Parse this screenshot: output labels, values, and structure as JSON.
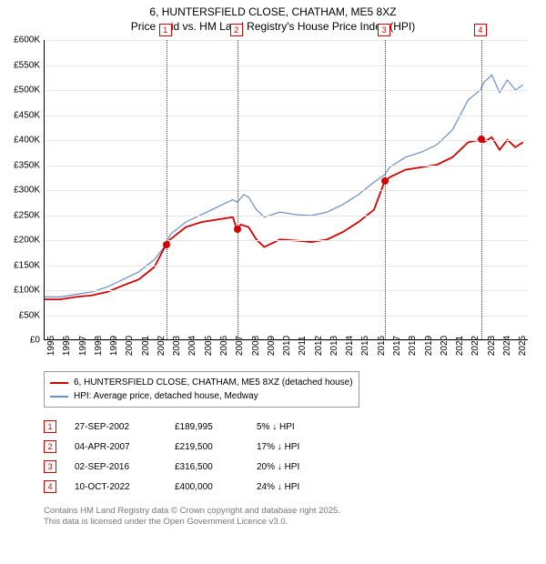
{
  "title_line1": "6, HUNTERSFIELD CLOSE, CHATHAM, ME5 8XZ",
  "title_line2": "Price paid vs. HM Land Registry's House Price Index (HPI)",
  "chart": {
    "type": "line",
    "x_domain": [
      1995,
      2025.8
    ],
    "y_domain": [
      0,
      600000
    ],
    "y_ticks": [
      0,
      50000,
      100000,
      150000,
      200000,
      250000,
      300000,
      350000,
      400000,
      450000,
      500000,
      550000,
      600000
    ],
    "y_tick_labels": [
      "£0",
      "£50K",
      "£100K",
      "£150K",
      "£200K",
      "£250K",
      "£300K",
      "£350K",
      "£400K",
      "£450K",
      "£500K",
      "£550K",
      "£600K"
    ],
    "x_ticks": [
      1995,
      1996,
      1997,
      1998,
      1999,
      2000,
      2001,
      2002,
      2003,
      2004,
      2005,
      2006,
      2007,
      2008,
      2009,
      2010,
      2011,
      2012,
      2013,
      2014,
      2015,
      2016,
      2017,
      2018,
      2019,
      2020,
      2021,
      2022,
      2023,
      2024,
      2025
    ],
    "grid_color": "#e8e8e8",
    "background": "#ffffff",
    "series": [
      {
        "name": "hpi",
        "color": "#6a8fc9",
        "width": 1.2,
        "points": [
          [
            1995,
            85000
          ],
          [
            1996,
            85000
          ],
          [
            1997,
            90000
          ],
          [
            1998,
            95000
          ],
          [
            1999,
            105000
          ],
          [
            2000,
            120000
          ],
          [
            2001,
            135000
          ],
          [
            2002,
            160000
          ],
          [
            2002.74,
            189995
          ],
          [
            2003,
            210000
          ],
          [
            2004,
            235000
          ],
          [
            2005,
            250000
          ],
          [
            2006,
            265000
          ],
          [
            2007,
            280000
          ],
          [
            2007.26,
            275000
          ],
          [
            2007.7,
            290000
          ],
          [
            2008,
            285000
          ],
          [
            2008.5,
            260000
          ],
          [
            2009,
            245000
          ],
          [
            2010,
            255000
          ],
          [
            2011,
            250000
          ],
          [
            2012,
            248000
          ],
          [
            2013,
            255000
          ],
          [
            2014,
            270000
          ],
          [
            2015,
            290000
          ],
          [
            2016,
            315000
          ],
          [
            2016.67,
            330000
          ],
          [
            2017,
            345000
          ],
          [
            2018,
            365000
          ],
          [
            2019,
            375000
          ],
          [
            2020,
            390000
          ],
          [
            2021,
            420000
          ],
          [
            2022,
            480000
          ],
          [
            2022.78,
            500000
          ],
          [
            2023,
            515000
          ],
          [
            2023.5,
            530000
          ],
          [
            2024,
            495000
          ],
          [
            2024.5,
            520000
          ],
          [
            2025,
            500000
          ],
          [
            2025.5,
            510000
          ]
        ]
      },
      {
        "name": "property",
        "color": "#d40000",
        "width": 1.8,
        "points": [
          [
            1995,
            80000
          ],
          [
            1996,
            80000
          ],
          [
            1997,
            85000
          ],
          [
            1998,
            88000
          ],
          [
            1999,
            95000
          ],
          [
            2000,
            108000
          ],
          [
            2001,
            120000
          ],
          [
            2002,
            145000
          ],
          [
            2002.74,
            189995
          ],
          [
            2003,
            200000
          ],
          [
            2004,
            225000
          ],
          [
            2005,
            235000
          ],
          [
            2006,
            240000
          ],
          [
            2007,
            245000
          ],
          [
            2007.26,
            219500
          ],
          [
            2007.5,
            230000
          ],
          [
            2008,
            225000
          ],
          [
            2008.5,
            200000
          ],
          [
            2009,
            185000
          ],
          [
            2010,
            200000
          ],
          [
            2011,
            198000
          ],
          [
            2012,
            195000
          ],
          [
            2013,
            200000
          ],
          [
            2014,
            215000
          ],
          [
            2015,
            235000
          ],
          [
            2016,
            260000
          ],
          [
            2016.67,
            316500
          ],
          [
            2017,
            325000
          ],
          [
            2018,
            340000
          ],
          [
            2019,
            345000
          ],
          [
            2020,
            350000
          ],
          [
            2021,
            365000
          ],
          [
            2022,
            395000
          ],
          [
            2022.78,
            400000
          ],
          [
            2023,
            395000
          ],
          [
            2023.5,
            405000
          ],
          [
            2024,
            380000
          ],
          [
            2024.5,
            400000
          ],
          [
            2025,
            385000
          ],
          [
            2025.5,
            395000
          ]
        ]
      }
    ],
    "sale_points": [
      {
        "x": 2002.74,
        "y": 189995,
        "color": "#d40000"
      },
      {
        "x": 2007.26,
        "y": 219500,
        "color": "#d40000"
      },
      {
        "x": 2016.67,
        "y": 316500,
        "color": "#d40000"
      },
      {
        "x": 2022.78,
        "y": 400000,
        "color": "#d40000"
      }
    ],
    "markers": [
      {
        "num": "1",
        "x": 2002.74,
        "color": "#d40000"
      },
      {
        "num": "2",
        "x": 2007.26,
        "color": "#d40000"
      },
      {
        "num": "3",
        "x": 2016.67,
        "color": "#d40000"
      },
      {
        "num": "4",
        "x": 2022.78,
        "color": "#d40000"
      }
    ]
  },
  "legend": {
    "items": [
      {
        "color": "#d40000",
        "label": "6, HUNTERSFIELD CLOSE, CHATHAM, ME5 8XZ (detached house)"
      },
      {
        "color": "#6a8fc9",
        "label": "HPI: Average price, detached house, Medway"
      }
    ]
  },
  "events": [
    {
      "num": "1",
      "date": "27-SEP-2002",
      "price": "£189,995",
      "diff": "5% ↓ HPI",
      "color": "#d40000"
    },
    {
      "num": "2",
      "date": "04-APR-2007",
      "price": "£219,500",
      "diff": "17% ↓ HPI",
      "color": "#d40000"
    },
    {
      "num": "3",
      "date": "02-SEP-2016",
      "price": "£316,500",
      "diff": "20% ↓ HPI",
      "color": "#d40000"
    },
    {
      "num": "4",
      "date": "10-OCT-2022",
      "price": "£400,000",
      "diff": "24% ↓ HPI",
      "color": "#d40000"
    }
  ],
  "footnote_line1": "Contains HM Land Registry data © Crown copyright and database right 2025.",
  "footnote_line2": "This data is licensed under the Open Government Licence v3.0."
}
